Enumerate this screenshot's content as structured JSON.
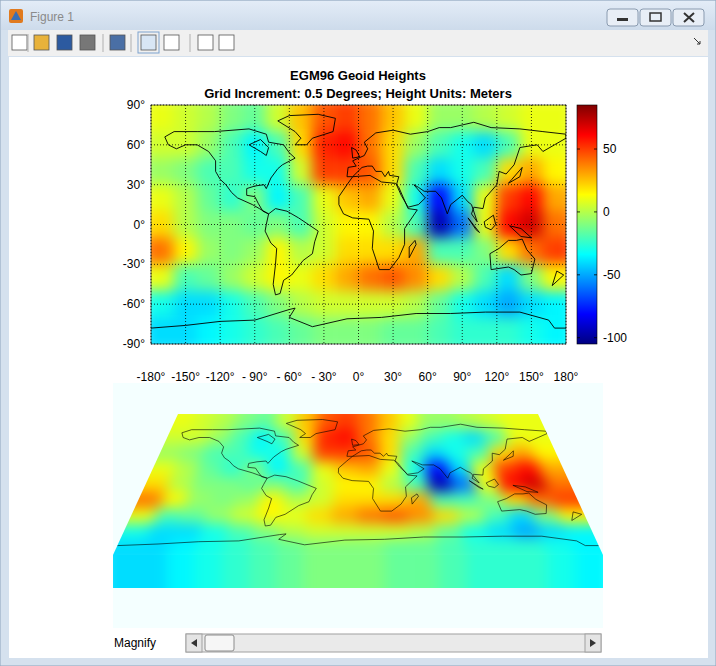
{
  "window": {
    "title": "Figure 1",
    "control_label": "Magnify"
  },
  "chart_data": {
    "type": "heatmap",
    "title": "EGM96 Geoid Heights",
    "subtitle": "Grid Increment: 0.5 Degrees; Height Units: Meters",
    "x": [
      -170,
      -150,
      -130,
      -110,
      -90,
      -70,
      -50,
      -30,
      -10,
      10,
      30,
      50,
      70,
      90,
      110,
      130,
      150,
      170
    ],
    "y": [
      80,
      60,
      40,
      20,
      0,
      -20,
      -40,
      -60,
      -80
    ],
    "cells": [
      [
        10,
        5,
        0,
        -10,
        -15,
        5,
        25,
        45,
        50,
        40,
        25,
        10,
        -5,
        -5,
        0,
        5,
        10,
        10
      ],
      [
        5,
        5,
        -5,
        -20,
        -35,
        -20,
        20,
        55,
        60,
        40,
        20,
        -5,
        -20,
        -30,
        -40,
        -20,
        10,
        10
      ],
      [
        -5,
        -10,
        -20,
        -20,
        -30,
        -30,
        5,
        50,
        50,
        45,
        20,
        -20,
        -40,
        -30,
        -20,
        20,
        30,
        15
      ],
      [
        10,
        0,
        -15,
        -25,
        -10,
        -35,
        -20,
        10,
        25,
        30,
        10,
        -30,
        -80,
        -40,
        10,
        50,
        60,
        30
      ],
      [
        20,
        0,
        -10,
        -10,
        -15,
        -10,
        -20,
        5,
        15,
        15,
        0,
        -20,
        -95,
        -60,
        10,
        60,
        70,
        40
      ],
      [
        40,
        15,
        -5,
        -10,
        -5,
        15,
        0,
        5,
        20,
        20,
        20,
        30,
        -20,
        -20,
        -10,
        20,
        40,
        50
      ],
      [
        10,
        -20,
        -15,
        -5,
        5,
        15,
        10,
        20,
        30,
        40,
        45,
        35,
        20,
        0,
        -20,
        -40,
        -10,
        15
      ],
      [
        -30,
        -40,
        -40,
        -30,
        -20,
        -10,
        0,
        5,
        5,
        5,
        5,
        0,
        -15,
        -30,
        -40,
        -50,
        -40,
        -35
      ],
      [
        -40,
        -40,
        -35,
        -30,
        -25,
        -20,
        -15,
        -10,
        -10,
        -10,
        -15,
        -15,
        -20,
        -25,
        -25,
        -25,
        -30,
        -35
      ]
    ],
    "xlim": [
      -180,
      180
    ],
    "ylim": [
      -90,
      90
    ],
    "xticks": [
      {
        "value": -180,
        "label": "-180°"
      },
      {
        "value": -150,
        "label": "-150°"
      },
      {
        "value": -120,
        "label": "-120°"
      },
      {
        "value": -90,
        "label": "- 90°"
      },
      {
        "value": -60,
        "label": "- 60°"
      },
      {
        "value": -30,
        "label": "- 30°"
      },
      {
        "value": 0,
        "label": "0°"
      },
      {
        "value": 30,
        "label": "30°"
      },
      {
        "value": 60,
        "label": "60°"
      },
      {
        "value": 90,
        "label": "90°"
      },
      {
        "value": 120,
        "label": "120°"
      },
      {
        "value": 150,
        "label": "150°"
      },
      {
        "value": 180,
        "label": "180°"
      }
    ],
    "yticks": [
      {
        "value": -90,
        "label": "-90°"
      },
      {
        "value": -60,
        "label": "-60°"
      },
      {
        "value": -30,
        "label": "-30°"
      },
      {
        "value": 0,
        "label": "0°"
      },
      {
        "value": 30,
        "label": "30°"
      },
      {
        "value": 60,
        "label": "60°"
      },
      {
        "value": 90,
        "label": "90°"
      }
    ],
    "grid": true,
    "colorbar": {
      "range": [
        -105,
        85
      ],
      "ticks": [
        -100,
        -50,
        0,
        50
      ]
    }
  }
}
